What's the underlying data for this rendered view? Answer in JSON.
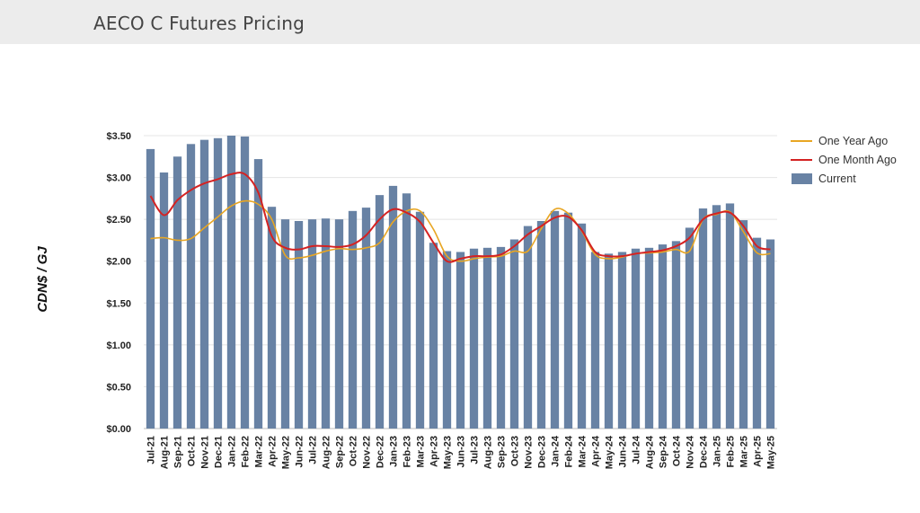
{
  "header": {
    "title": "AECO C Futures Pricing"
  },
  "chart_data": {
    "type": "bar",
    "title": "",
    "xlabel": "",
    "ylabel": "CDN$ / GJ",
    "ylim": [
      0,
      3.5
    ],
    "yticks": [
      "$0.00",
      "$0.50",
      "$1.00",
      "$1.50",
      "$2.00",
      "$2.50",
      "$3.00",
      "$3.50"
    ],
    "ytick_values": [
      0,
      0.5,
      1.0,
      1.5,
      2.0,
      2.5,
      3.0,
      3.5
    ],
    "grid": true,
    "legend_position": "top-right",
    "categories": [
      "Jul-21",
      "Aug-21",
      "Sep-21",
      "Oct-21",
      "Nov-21",
      "Dec-21",
      "Jan-22",
      "Feb-22",
      "Mar-22",
      "Apr-22",
      "May-22",
      "Jun-22",
      "Jul-22",
      "Aug-22",
      "Sep-22",
      "Oct-22",
      "Nov-22",
      "Dec-22",
      "Jan-23",
      "Feb-23",
      "Mar-23",
      "Apr-23",
      "May-23",
      "Jun-23",
      "Jul-23",
      "Aug-23",
      "Sep-23",
      "Oct-23",
      "Nov-23",
      "Dec-23",
      "Jan-24",
      "Feb-24",
      "Mar-24",
      "Apr-24",
      "May-24",
      "Jun-24",
      "Jul-24",
      "Aug-24",
      "Sep-24",
      "Oct-24",
      "Nov-24",
      "Dec-24",
      "Jan-25",
      "Feb-25",
      "Mar-25",
      "Apr-25",
      "May-25"
    ],
    "series": [
      {
        "name": "One Year Ago",
        "type": "line",
        "color": "#e8a623",
        "values": [
          2.27,
          2.28,
          2.25,
          2.27,
          2.4,
          2.53,
          2.66,
          2.72,
          2.68,
          2.5,
          2.07,
          2.04,
          2.07,
          2.12,
          2.15,
          2.14,
          2.16,
          2.22,
          2.47,
          2.6,
          2.6,
          2.38,
          2.06,
          2.0,
          2.03,
          2.05,
          2.06,
          2.12,
          2.12,
          2.39,
          2.62,
          2.57,
          2.36,
          2.08,
          2.03,
          2.05,
          2.09,
          2.1,
          2.11,
          2.14,
          2.12,
          2.5,
          2.56,
          2.59,
          2.35,
          2.1,
          2.09
        ]
      },
      {
        "name": "One Month Ago",
        "type": "line",
        "color": "#d42222",
        "values": [
          2.78,
          2.55,
          2.73,
          2.85,
          2.93,
          2.98,
          3.04,
          3.04,
          2.82,
          2.3,
          2.16,
          2.14,
          2.18,
          2.18,
          2.17,
          2.2,
          2.31,
          2.5,
          2.62,
          2.58,
          2.47,
          2.22,
          2.0,
          2.03,
          2.06,
          2.06,
          2.08,
          2.18,
          2.32,
          2.42,
          2.52,
          2.53,
          2.37,
          2.11,
          2.06,
          2.06,
          2.09,
          2.11,
          2.13,
          2.18,
          2.28,
          2.5,
          2.57,
          2.58,
          2.42,
          2.18,
          2.14
        ]
      },
      {
        "name": "Current",
        "type": "bar",
        "color": "#6882a4",
        "values": [
          3.34,
          3.06,
          3.25,
          3.4,
          3.45,
          3.47,
          3.5,
          3.49,
          3.22,
          2.65,
          2.5,
          2.48,
          2.5,
          2.51,
          2.5,
          2.6,
          2.64,
          2.79,
          2.9,
          2.81,
          2.59,
          2.22,
          2.12,
          2.11,
          2.15,
          2.16,
          2.17,
          2.26,
          2.42,
          2.48,
          2.6,
          2.58,
          2.45,
          2.11,
          2.09,
          2.11,
          2.15,
          2.16,
          2.2,
          2.24,
          2.4,
          2.63,
          2.67,
          2.69,
          2.49,
          2.28,
          2.26
        ]
      }
    ]
  }
}
